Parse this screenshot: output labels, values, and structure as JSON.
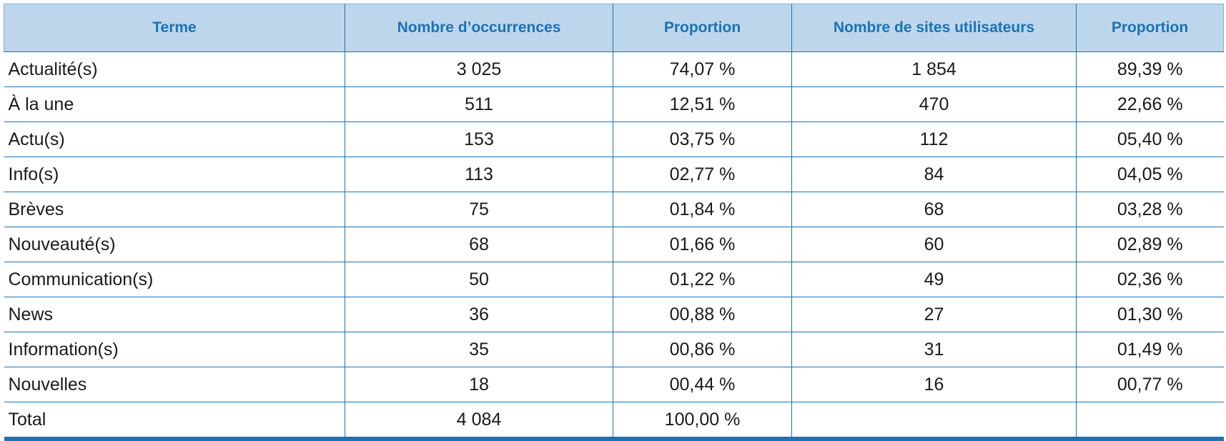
{
  "table": {
    "headers": [
      "Terme",
      "Nombre d’occurrences",
      "Proportion",
      "Nombre de sites utilisateurs",
      "Proportion"
    ],
    "rows": [
      [
        "Actualité(s)",
        "3 025",
        "74,07 %",
        "1 854",
        "89,39 %"
      ],
      [
        "À la une",
        "511",
        "12,51 %",
        "470",
        "22,66 %"
      ],
      [
        "Actu(s)",
        "153",
        "03,75 %",
        "112",
        "05,40 %"
      ],
      [
        "Info(s)",
        "113",
        "02,77 %",
        "84",
        "04,05 %"
      ],
      [
        "Brèves",
        "75",
        "01,84 %",
        "68",
        "03,28 %"
      ],
      [
        "Nouveauté(s)",
        "68",
        "01,66 %",
        "60",
        "02,89 %"
      ],
      [
        "Communication(s)",
        "50",
        "01,22 %",
        "49",
        "02,36 %"
      ],
      [
        "News",
        "36",
        "00,88 %",
        "27",
        "01,30 %"
      ],
      [
        "Information(s)",
        "35",
        "00,86 %",
        "31",
        "01,49 %"
      ],
      [
        "Nouvelles",
        "18",
        "00,44 %",
        "16",
        "00,77 %"
      ],
      [
        "Total",
        "4 084",
        "100,00 %",
        "",
        ""
      ]
    ]
  },
  "colors": {
    "header_bg": "#bed6ec",
    "header_text": "#1b72b5",
    "rule": "#1b72b5"
  }
}
